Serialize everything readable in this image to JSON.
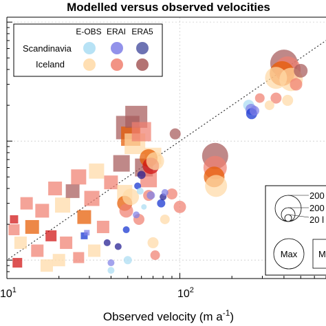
{
  "chart_data": {
    "type": "scatter",
    "title": "Modelled versus observed velocities",
    "xlabel_main": "Observed velocity (m a",
    "xlabel_sup": "-1",
    "xlabel_close": ")",
    "xscale": "log",
    "yscale": "log",
    "xlim": [
      10,
      700
    ],
    "ylim": [
      7,
      1100
    ],
    "xticks": [
      {
        "value": 10,
        "label": "10",
        "sup": "1"
      },
      {
        "value": 100,
        "label": "10",
        "sup": "2"
      }
    ],
    "grid": "on",
    "identity_line": true,
    "legend": {
      "placement": "top-left",
      "columns": [
        "E-OBS",
        "ERAI",
        "ERA5"
      ],
      "rows": [
        {
          "label": "Scandinavia",
          "colors": [
            "#aaddf3",
            "#7f7fe6",
            "#545aa6"
          ]
        },
        {
          "label": "Iceland",
          "colors": [
            "#ffd9a6",
            "#f08070",
            "#a65a5a"
          ]
        }
      ]
    },
    "size_legend": {
      "placement": "bottom-right",
      "labels": [
        "200",
        "200",
        "20 l"
      ],
      "max_label": "Max",
      "second_max_label": "M"
    },
    "colors": {
      "iceland_eobs": "#ffd9a6",
      "iceland_erai": "#f08070",
      "iceland_era5": "#a65a5a",
      "iceland_dark": "#e65a00",
      "iceland_red": "#d01010",
      "scand_eobs": "#aaddf3",
      "scand_erai": "#7f7fe6",
      "scand_era5": "#545aa6",
      "scand_blue": "#1030d0",
      "scand_darkblue": "#201a90"
    },
    "series": [
      {
        "name": "Iceland",
        "points": [
          {
            "x": 11.5,
            "y": 9.5,
            "shape": "square",
            "c": "iceland_red",
            "s": 14
          },
          {
            "x": 11,
            "y": 22,
            "shape": "square",
            "c": "iceland_red",
            "s": 12
          },
          {
            "x": 12,
            "y": 14,
            "shape": "square",
            "c": "iceland_eobs",
            "s": 18
          },
          {
            "x": 11,
            "y": 18,
            "shape": "square",
            "c": "iceland_erai",
            "s": 16
          },
          {
            "x": 13,
            "y": 30,
            "shape": "square",
            "c": "iceland_erai",
            "s": 18
          },
          {
            "x": 14,
            "y": 19,
            "shape": "square",
            "c": "iceland_dark",
            "s": 20
          },
          {
            "x": 15,
            "y": 12,
            "shape": "square",
            "c": "iceland_erai",
            "s": 18
          },
          {
            "x": 16,
            "y": 26,
            "shape": "square",
            "c": "iceland_erai",
            "s": 20
          },
          {
            "x": 17,
            "y": 9,
            "shape": "square",
            "c": "iceland_eobs",
            "s": 18
          },
          {
            "x": 18,
            "y": 16,
            "shape": "square",
            "c": "iceland_red",
            "s": 16
          },
          {
            "x": 19,
            "y": 40,
            "shape": "square",
            "c": "iceland_erai",
            "s": 20
          },
          {
            "x": 21,
            "y": 29,
            "shape": "square",
            "c": "iceland_eobs",
            "s": 22
          },
          {
            "x": 22,
            "y": 14,
            "shape": "square",
            "c": "iceland_erai",
            "s": 18
          },
          {
            "x": 24,
            "y": 38,
            "shape": "square",
            "c": "iceland_era5",
            "s": 20
          },
          {
            "x": 26,
            "y": 50,
            "shape": "square",
            "c": "iceland_erai",
            "s": 22
          },
          {
            "x": 28,
            "y": 23,
            "shape": "square",
            "c": "iceland_dark",
            "s": 20
          },
          {
            "x": 31,
            "y": 33,
            "shape": "square",
            "c": "iceland_erai",
            "s": 22
          },
          {
            "x": 33,
            "y": 56,
            "shape": "square",
            "c": "iceland_eobs",
            "s": 22
          },
          {
            "x": 36,
            "y": 19,
            "shape": "square",
            "c": "iceland_erai",
            "s": 18
          },
          {
            "x": 20,
            "y": 10,
            "shape": "square",
            "c": "iceland_eobs",
            "s": 18
          },
          {
            "x": 26,
            "y": 10.5,
            "shape": "square",
            "c": "iceland_erai",
            "s": 16
          },
          {
            "x": 32,
            "y": 12,
            "shape": "square",
            "c": "iceland_eobs",
            "s": 18
          },
          {
            "x": 40,
            "y": 45,
            "shape": "square",
            "c": "iceland_erai",
            "s": 20
          },
          {
            "x": 46,
            "y": 65,
            "shape": "square",
            "c": "iceland_era5",
            "s": 24
          },
          {
            "x": 48,
            "y": 37,
            "shape": "square",
            "c": "iceland_eobs",
            "s": 22
          },
          {
            "x": 50,
            "y": 130,
            "shape": "square",
            "c": "iceland_era5",
            "s": 34
          },
          {
            "x": 52,
            "y": 110,
            "shape": "square",
            "c": "iceland_dark",
            "s": 28
          },
          {
            "x": 55,
            "y": 95,
            "shape": "square",
            "c": "iceland_eobs",
            "s": 30
          },
          {
            "x": 56,
            "y": 160,
            "shape": "square",
            "c": "iceland_era5",
            "s": 32
          },
          {
            "x": 60,
            "y": 120,
            "shape": "square",
            "c": "iceland_erai",
            "s": 28
          },
          {
            "x": 62,
            "y": 60,
            "shape": "square",
            "c": "iceland_era5",
            "s": 26
          },
          {
            "x": 66,
            "y": 48,
            "shape": "square",
            "c": "iceland_erai",
            "s": 24
          },
          {
            "x": 70,
            "y": 75,
            "shape": "square",
            "c": "iceland_eobs",
            "s": 24
          },
          {
            "x": 48,
            "y": 30,
            "shape": "circle",
            "c": "iceland_dark",
            "s": 22
          },
          {
            "x": 49,
            "y": 26,
            "shape": "circle",
            "c": "iceland_erai",
            "s": 20
          },
          {
            "x": 52,
            "y": 34,
            "shape": "circle",
            "c": "iceland_eobs",
            "s": 24
          },
          {
            "x": 58,
            "y": 22,
            "shape": "circle",
            "c": "iceland_erai",
            "s": 16
          },
          {
            "x": 66,
            "y": 72,
            "shape": "circle",
            "c": "iceland_dark",
            "s": 26
          },
          {
            "x": 68,
            "y": 62,
            "shape": "circle",
            "c": "iceland_red",
            "s": 24
          },
          {
            "x": 72,
            "y": 68,
            "shape": "circle",
            "c": "iceland_eobs",
            "s": 26
          },
          {
            "x": 66,
            "y": 35,
            "shape": "circle",
            "c": "iceland_erai",
            "s": 16
          },
          {
            "x": 70,
            "y": 14,
            "shape": "circle",
            "c": "iceland_eobs",
            "s": 16
          },
          {
            "x": 72,
            "y": 11,
            "shape": "circle",
            "c": "iceland_erai",
            "s": 14
          },
          {
            "x": 82,
            "y": 22,
            "shape": "circle",
            "c": "iceland_eobs",
            "s": 14
          },
          {
            "x": 90,
            "y": 36,
            "shape": "circle",
            "c": "iceland_erai",
            "s": 16
          },
          {
            "x": 94,
            "y": 115,
            "shape": "circle",
            "c": "iceland_era5",
            "s": 16
          },
          {
            "x": 100,
            "y": 28,
            "shape": "circle",
            "c": "iceland_erai",
            "s": 18
          },
          {
            "x": 160,
            "y": 75,
            "shape": "circle",
            "c": "iceland_era5",
            "s": 38
          },
          {
            "x": 160,
            "y": 60,
            "shape": "circle",
            "c": "iceland_erai",
            "s": 34
          },
          {
            "x": 158,
            "y": 50,
            "shape": "circle",
            "c": "iceland_dark",
            "s": 30
          },
          {
            "x": 162,
            "y": 42,
            "shape": "circle",
            "c": "iceland_eobs",
            "s": 32
          },
          {
            "x": 400,
            "y": 450,
            "shape": "circle",
            "c": "iceland_era5",
            "s": 40
          },
          {
            "x": 420,
            "y": 400,
            "shape": "circle",
            "c": "iceland_erai",
            "s": 38
          },
          {
            "x": 390,
            "y": 370,
            "shape": "circle",
            "c": "iceland_dark",
            "s": 36
          },
          {
            "x": 440,
            "y": 330,
            "shape": "circle",
            "c": "iceland_eobs",
            "s": 34
          },
          {
            "x": 360,
            "y": 340,
            "shape": "circle",
            "c": "iceland_eobs",
            "s": 32
          },
          {
            "x": 500,
            "y": 390,
            "shape": "circle",
            "c": "iceland_era5",
            "s": 20
          },
          {
            "x": 470,
            "y": 300,
            "shape": "circle",
            "c": "iceland_erai",
            "s": 18
          },
          {
            "x": 360,
            "y": 230,
            "shape": "circle",
            "c": "iceland_erai",
            "s": 16
          },
          {
            "x": 420,
            "y": 220,
            "shape": "circle",
            "c": "iceland_eobs",
            "s": 16
          },
          {
            "x": 290,
            "y": 230,
            "shape": "circle",
            "c": "iceland_erai",
            "s": 14
          },
          {
            "x": 330,
            "y": 200,
            "shape": "circle",
            "c": "iceland_eobs",
            "s": 14
          }
        ]
      },
      {
        "name": "Scandinavia",
        "points": [
          {
            "x": 28,
            "y": 16,
            "shape": "square",
            "c": "scand_blue",
            "s": 10
          },
          {
            "x": 29,
            "y": 17,
            "shape": "square",
            "c": "scand_erai",
            "s": 8
          },
          {
            "x": 38,
            "y": 14,
            "shape": "circle",
            "c": "scand_darkblue",
            "s": 10
          },
          {
            "x": 40,
            "y": 9.5,
            "shape": "circle",
            "c": "scand_erai",
            "s": 10
          },
          {
            "x": 40,
            "y": 8.2,
            "shape": "circle",
            "c": "scand_eobs",
            "s": 10
          },
          {
            "x": 44,
            "y": 13,
            "shape": "circle",
            "c": "scand_darkblue",
            "s": 10
          },
          {
            "x": 49,
            "y": 18,
            "shape": "circle",
            "c": "scand_blue",
            "s": 10
          },
          {
            "x": 50,
            "y": 10,
            "shape": "circle",
            "c": "scand_eobs",
            "s": 12
          },
          {
            "x": 56,
            "y": 24,
            "shape": "circle",
            "c": "scand_erai",
            "s": 10
          },
          {
            "x": 57,
            "y": 42,
            "shape": "circle",
            "c": "scand_blue",
            "s": 10
          },
          {
            "x": 59,
            "y": 38,
            "shape": "circle",
            "c": "scand_eobs",
            "s": 10
          },
          {
            "x": 60,
            "y": 52,
            "shape": "circle",
            "c": "scand_darkblue",
            "s": 12
          },
          {
            "x": 62,
            "y": 28,
            "shape": "circle",
            "c": "scand_eobs",
            "s": 8
          },
          {
            "x": 68,
            "y": 35,
            "shape": "circle",
            "c": "scand_erai",
            "s": 12
          },
          {
            "x": 78,
            "y": 30,
            "shape": "circle",
            "c": "scand_blue",
            "s": 12
          },
          {
            "x": 80,
            "y": 34,
            "shape": "circle",
            "c": "scand_darkblue",
            "s": 10
          },
          {
            "x": 82,
            "y": 37,
            "shape": "circle",
            "c": "scand_erai",
            "s": 10
          },
          {
            "x": 250,
            "y": 200,
            "shape": "circle",
            "c": "scand_eobs",
            "s": 16
          },
          {
            "x": 258,
            "y": 185,
            "shape": "circle",
            "c": "scand_erai",
            "s": 16
          },
          {
            "x": 260,
            "y": 170,
            "shape": "circle",
            "c": "scand_blue",
            "s": 16
          },
          {
            "x": 270,
            "y": 180,
            "shape": "circle",
            "c": "scand_erai",
            "s": 14
          }
        ]
      }
    ]
  }
}
